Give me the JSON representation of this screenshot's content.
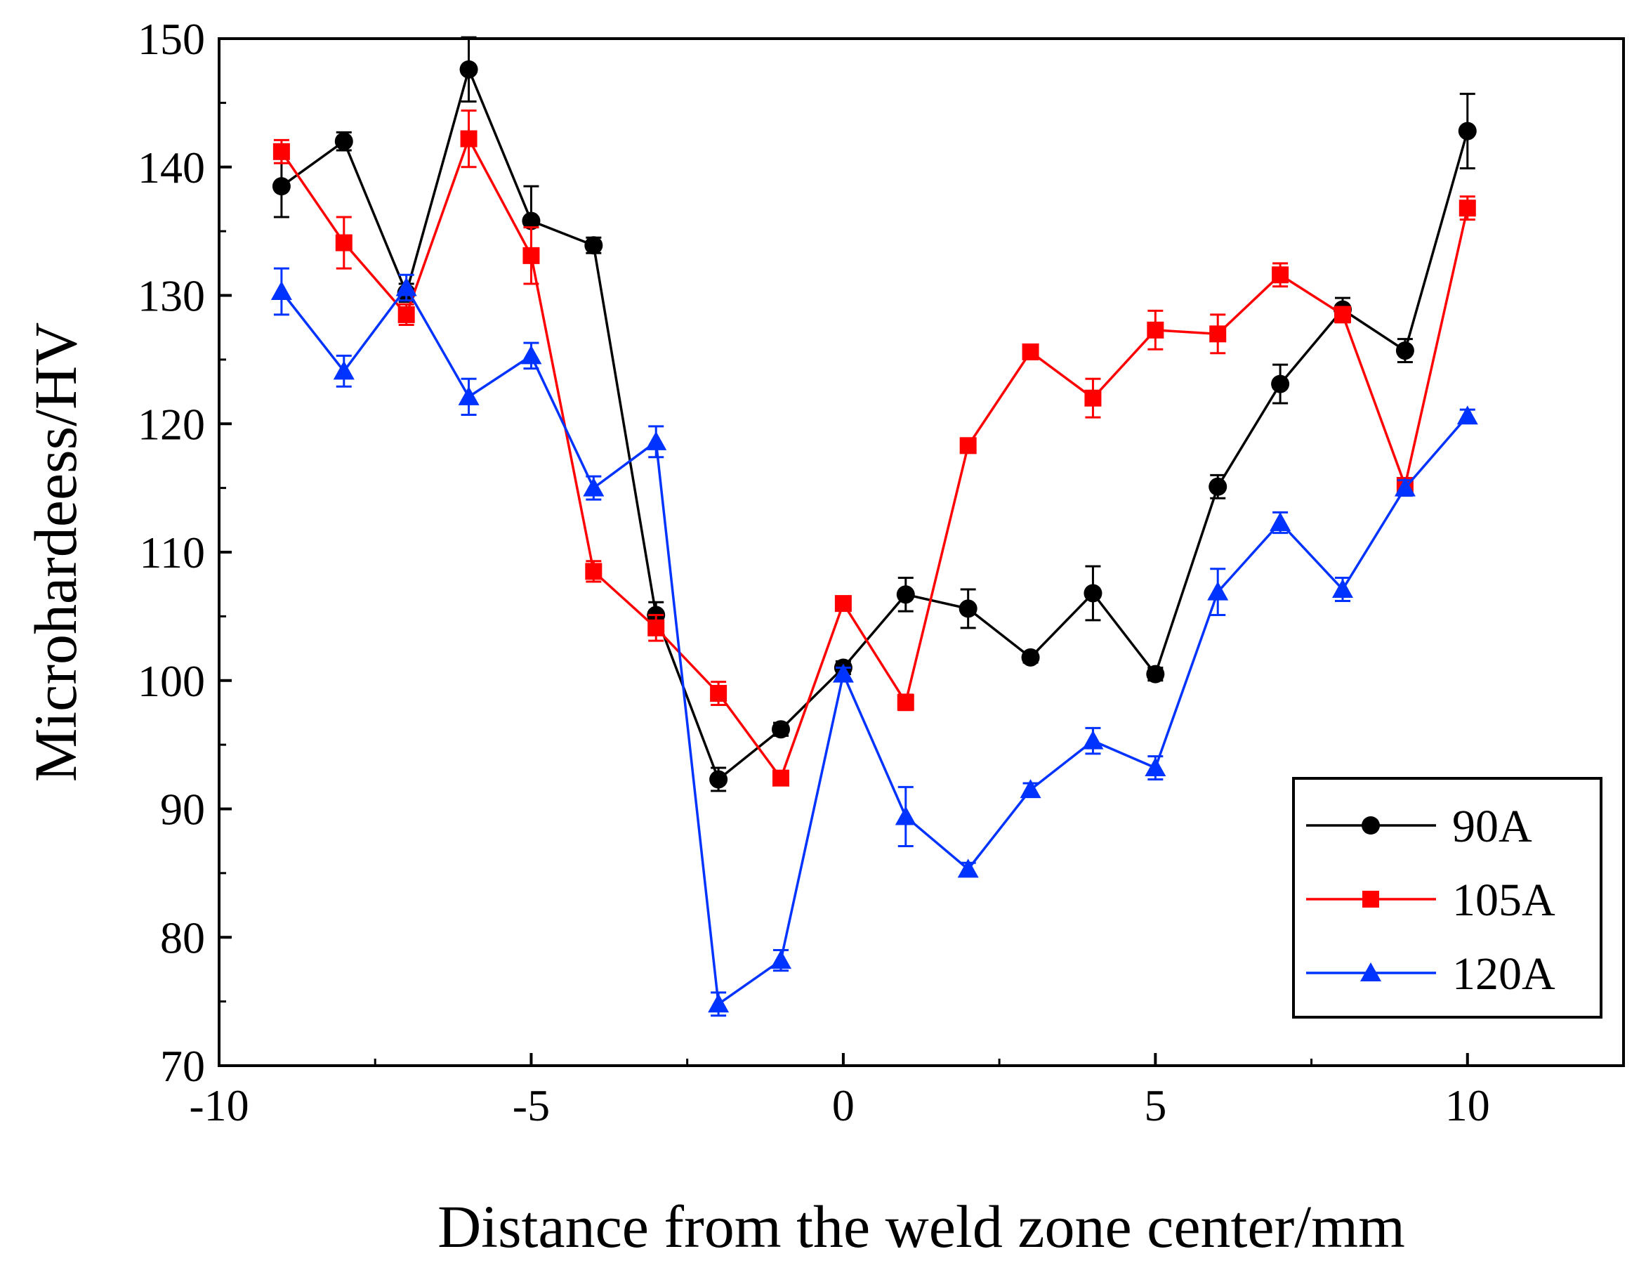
{
  "chart_data": {
    "type": "line",
    "title": "",
    "xlabel": "Distance from the weld zone center/mm",
    "ylabel": "Microhardeess/HV",
    "xlim": [
      -10,
      12.5
    ],
    "ylim": [
      70,
      150
    ],
    "xticks": [
      -10,
      -5,
      0,
      5,
      10
    ],
    "xtick_labels": [
      "-10",
      "-5",
      "0",
      "5",
      "10"
    ],
    "yticks": [
      70,
      80,
      90,
      100,
      110,
      120,
      130,
      140,
      150
    ],
    "ytick_labels": [
      "70",
      "80",
      "90",
      "100",
      "110",
      "120",
      "130",
      "140",
      "150"
    ],
    "grid": false,
    "legend_position": "bottom-right",
    "x": [
      -9,
      -8,
      -7,
      -6,
      -5,
      -4,
      -3,
      -2,
      -1,
      0,
      1,
      2,
      3,
      4,
      5,
      6,
      7,
      8,
      9,
      10
    ],
    "series": [
      {
        "name": "90A",
        "color": "#000000",
        "marker": "circle",
        "values": [
          138.5,
          142.0,
          130.2,
          147.6,
          135.8,
          133.9,
          105.1,
          92.3,
          96.2,
          101.0,
          106.7,
          105.6,
          101.8,
          106.8,
          100.5,
          115.1,
          123.1,
          128.9,
          125.7,
          142.8
        ],
        "errors": [
          2.4,
          0.7,
          0.7,
          2.5,
          2.7,
          0.6,
          1.0,
          0.9,
          0.5,
          0.5,
          1.3,
          1.5,
          0.4,
          2.1,
          0.5,
          0.9,
          1.5,
          0.9,
          0.9,
          2.9
        ]
      },
      {
        "name": "105A",
        "color": "#ff0000",
        "marker": "square",
        "values": [
          141.2,
          134.1,
          128.5,
          142.2,
          133.1,
          108.5,
          104.1,
          99.0,
          92.4,
          106.0,
          98.3,
          118.3,
          125.6,
          122.0,
          127.3,
          127.0,
          131.6,
          128.5,
          115.2,
          136.8
        ],
        "errors": [
          0.9,
          2.0,
          0.8,
          2.2,
          2.2,
          0.8,
          1.0,
          0.9,
          0.5,
          0.4,
          0.6,
          0.4,
          0.4,
          1.5,
          1.5,
          1.5,
          0.9,
          0.6,
          0.5,
          0.9
        ]
      },
      {
        "name": "120A",
        "color": "#0033ff",
        "marker": "triangle",
        "values": [
          130.3,
          124.1,
          130.6,
          122.1,
          125.3,
          115.0,
          118.6,
          74.8,
          78.2,
          100.5,
          89.4,
          85.3,
          91.5,
          95.3,
          93.2,
          106.9,
          112.3,
          107.1,
          115.0,
          120.6
        ],
        "errors": [
          1.8,
          1.2,
          1.0,
          1.4,
          1.0,
          0.9,
          1.2,
          0.9,
          0.8,
          0.5,
          2.3,
          0.5,
          0.5,
          1.0,
          0.9,
          1.8,
          0.8,
          0.9,
          0.6,
          0.5
        ]
      }
    ]
  }
}
